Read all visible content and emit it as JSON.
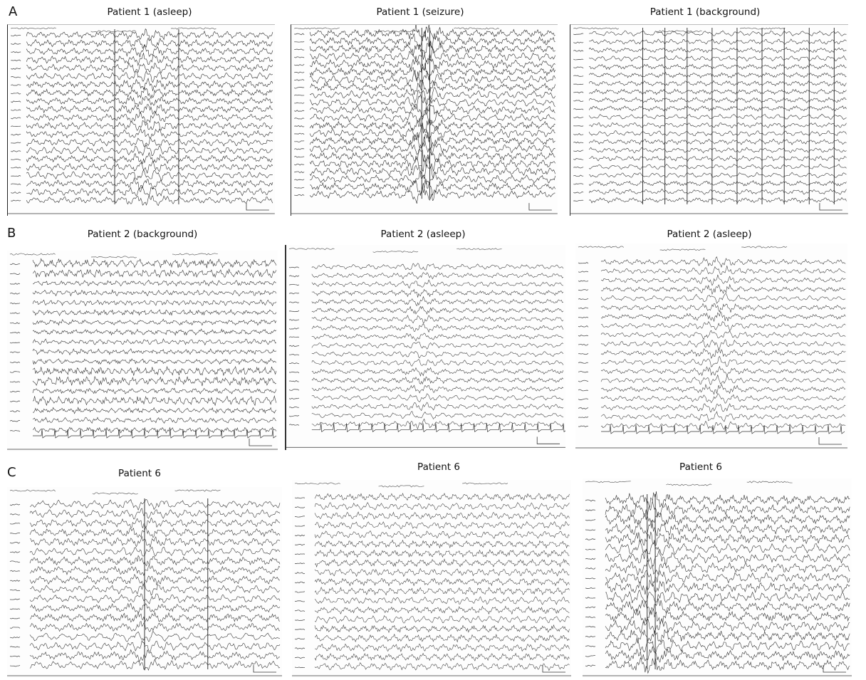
{
  "rows": [
    {
      "letter": "A",
      "panels": [
        {
          "title": "Patient 1 (asleep)"
        },
        {
          "title": "Patient 1 (seizure)"
        },
        {
          "title": "Patient 1 (background)"
        }
      ]
    },
    {
      "letter": "B",
      "panels": [
        {
          "title": "Patient 2 (background)"
        },
        {
          "title": "Patient 2 (asleep)"
        },
        {
          "title": "Patient 2 (asleep)"
        }
      ]
    },
    {
      "letter": "C",
      "panels": [
        {
          "title": "Patient 6"
        },
        {
          "title": "Patient 6"
        },
        {
          "title": "Patient 6"
        }
      ]
    }
  ]
}
